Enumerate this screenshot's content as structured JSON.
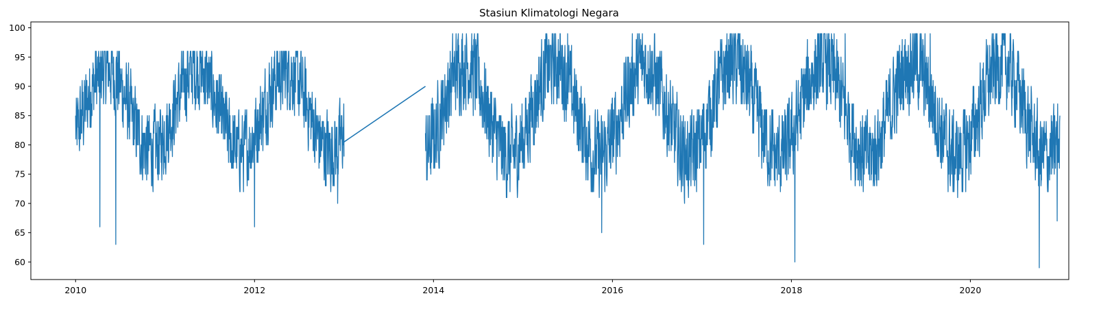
{
  "chart_data": {
    "type": "line",
    "title": "Stasiun Klimatologi Negara",
    "xlabel": "",
    "ylabel": "",
    "x_ticks": [
      "2010",
      "2012",
      "2014",
      "2016",
      "2018",
      "2020"
    ],
    "y_ticks": [
      "60",
      "65",
      "70",
      "75",
      "80",
      "85",
      "90",
      "95",
      "100"
    ],
    "xlim": [
      2009.5,
      2021.1
    ],
    "ylim": [
      57,
      101
    ],
    "grid": false,
    "line_color": "#1f77b4",
    "series": [
      {
        "segments": [
          {
            "start": 2010.0,
            "end": 2013.0,
            "min": 63,
            "max": 96,
            "base": 86,
            "amp": 7,
            "noise": 10
          },
          {
            "start": 2013.91,
            "end": 2021.0,
            "min": 59,
            "max": 99,
            "base": 86,
            "amp": 8,
            "noise": 11
          }
        ],
        "gap_line": [
          [
            2013.0,
            80.5
          ],
          [
            2013.91,
            90
          ]
        ],
        "notable_points": [
          [
            2010.45,
            63
          ],
          [
            2010.27,
            66
          ],
          [
            2012.0,
            66
          ],
          [
            2012.93,
            70
          ],
          [
            2015.88,
            65
          ],
          [
            2017.02,
            63
          ],
          [
            2018.04,
            60
          ],
          [
            2020.77,
            59
          ],
          [
            2015.5,
            99
          ],
          [
            2018.6,
            99
          ],
          [
            2019.55,
            99
          ],
          [
            2020.97,
            67
          ]
        ]
      }
    ]
  }
}
